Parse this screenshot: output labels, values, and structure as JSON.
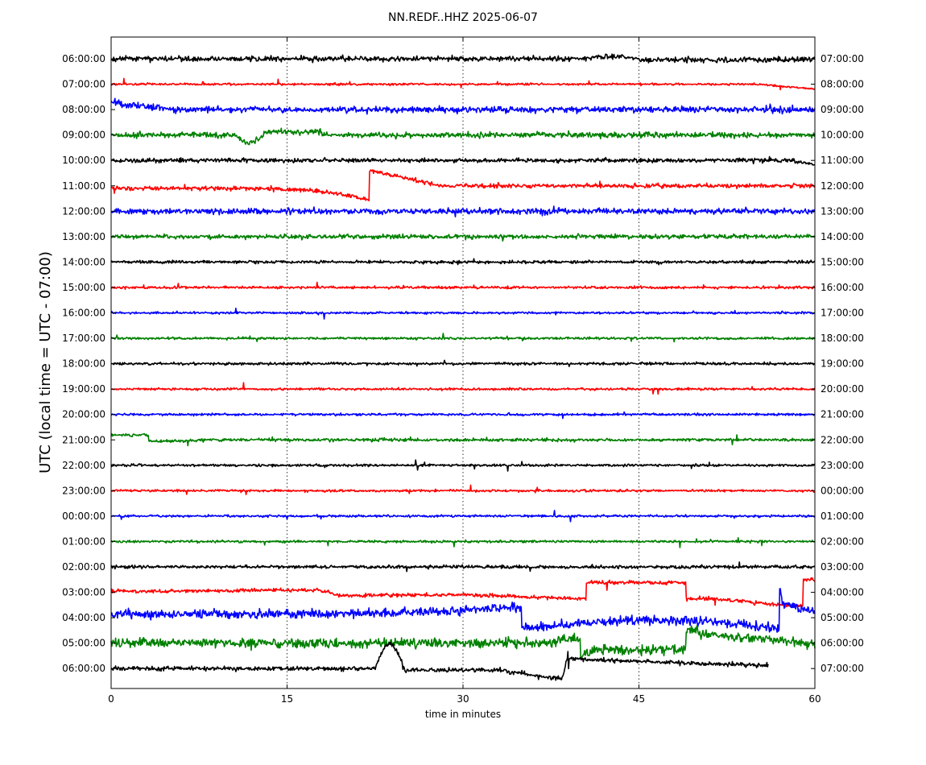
{
  "chart_data": {
    "type": "line",
    "title": "NN.REDF..HHZ 2025-06-07",
    "xlabel": "time in minutes",
    "ylabel": "UTC (local time = UTC - 07:00)",
    "xlim": [
      0,
      60
    ],
    "x_ticks": [
      0,
      15,
      30,
      45,
      60
    ],
    "grid": "vertical dotted at 15, 30, 45",
    "trace_colors": [
      "#000000",
      "#ff0000",
      "#0000ff",
      "#008000"
    ],
    "rows": [
      {
        "left": "06:00:00",
        "right": "07:00:00"
      },
      {
        "left": "07:00:00",
        "right": "08:00:00"
      },
      {
        "left": "08:00:00",
        "right": "09:00:00"
      },
      {
        "left": "09:00:00",
        "right": "10:00:00"
      },
      {
        "left": "10:00:00",
        "right": "11:00:00"
      },
      {
        "left": "11:00:00",
        "right": "12:00:00"
      },
      {
        "left": "12:00:00",
        "right": "13:00:00"
      },
      {
        "left": "13:00:00",
        "right": "14:00:00"
      },
      {
        "left": "14:00:00",
        "right": "15:00:00"
      },
      {
        "left": "15:00:00",
        "right": "16:00:00"
      },
      {
        "left": "16:00:00",
        "right": "17:00:00"
      },
      {
        "left": "17:00:00",
        "right": "18:00:00"
      },
      {
        "left": "18:00:00",
        "right": "19:00:00"
      },
      {
        "left": "19:00:00",
        "right": "20:00:00"
      },
      {
        "left": "20:00:00",
        "right": "21:00:00"
      },
      {
        "left": "21:00:00",
        "right": "22:00:00"
      },
      {
        "left": "22:00:00",
        "right": "23:00:00"
      },
      {
        "left": "23:00:00",
        "right": "00:00:00"
      },
      {
        "left": "00:00:00",
        "right": "01:00:00"
      },
      {
        "left": "01:00:00",
        "right": "02:00:00"
      },
      {
        "left": "02:00:00",
        "right": "03:00:00"
      },
      {
        "left": "03:00:00",
        "right": "04:00:00"
      },
      {
        "left": "04:00:00",
        "right": "05:00:00"
      },
      {
        "left": "05:00:00",
        "right": "06:00:00"
      },
      {
        "left": "06:00:00",
        "right": "07:00:00"
      }
    ],
    "last_row_end_minute": 56
  }
}
